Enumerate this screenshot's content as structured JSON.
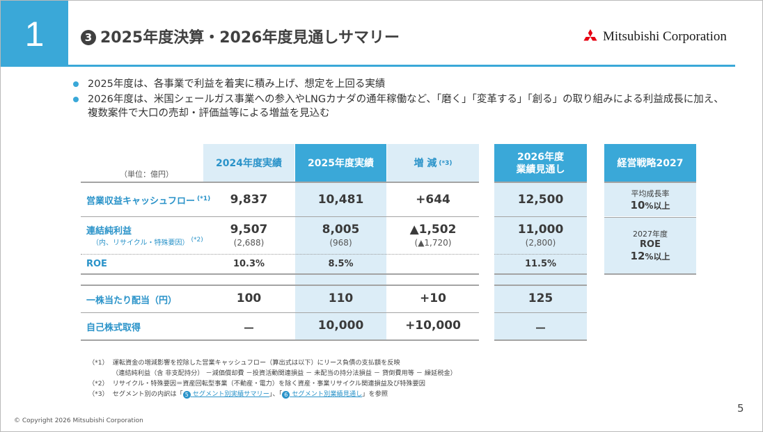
{
  "section_number": "1",
  "title_number": "3",
  "title": "2025年度決算・2026年度見通しサマリー",
  "logo_text": "Mitsubishi Corporation",
  "bullets": [
    "2025年度は、各事業で利益を着実に積み上げ、想定を上回る実績",
    "2026年度は、米国シェールガス事業への参入やLNGカナダの通年稼働など、「磨く」「変革する」「創る」の取り組みによる利益成長に加え、",
    "複数案件で大口の売却・評価益等による増益を見込む"
  ],
  "table": {
    "unit": "（単位：億円）",
    "headers": {
      "fy2024": "2024年度実績",
      "fy2025": "2025年度実績",
      "change": "増 減",
      "change_note": "(*3)",
      "fy2026_line1": "2026年度",
      "fy2026_line2": "業績見通し",
      "strategy": "経営戦略2027"
    },
    "rows": {
      "ocf": {
        "label": "営業収益キャッシュフロー",
        "note": "(*1)",
        "fy2024": "9,837",
        "fy2025": "10,481",
        "change": "+644",
        "fy2026": "12,500"
      },
      "net": {
        "label": "連結純利益",
        "sublabel": "（内、リサイクル・特殊要因）",
        "note": "(*2)",
        "fy2024": "9,507",
        "fy2024_sub": "(2,688)",
        "fy2025": "8,005",
        "fy2025_sub": "(968)",
        "change": "▲1,502",
        "change_sub": "(▲1,720)",
        "fy2026": "11,000",
        "fy2026_sub": "(2,800)"
      },
      "roe": {
        "label": "ROE",
        "fy2024": "10.3%",
        "fy2025": "8.5%",
        "fy2026": "11.5%"
      },
      "dividend": {
        "label": "一株当たり配当（円）",
        "fy2024": "100",
        "fy2025": "110",
        "change": "+10",
        "fy2026": "125"
      },
      "buyback": {
        "label": "自己株式取得",
        "fy2024": "－",
        "fy2025": "10,000",
        "change": "+10,000",
        "fy2026": "－"
      }
    },
    "strategy": {
      "growth_label": "平均成長率",
      "growth_value": "10",
      "growth_suffix": "%以上",
      "roe_label_1": "2027年度",
      "roe_label_2": "ROE",
      "roe_value": "12",
      "roe_suffix": "%以上"
    }
  },
  "footnotes": {
    "n1_mark": "（*1）",
    "n1_text": "運転資金の増減影響を控除した営業キャッシュフロー（算出式は以下）にリース負債の支払額を反映",
    "n1_formula": "（連結純利益（含 非支配持分） －減価償却費 －投資活動関連損益 － 未配当の持分法損益 － 貸倒費用等 － 繰延税金）",
    "n2_mark": "（*2）",
    "n2_text": "リサイクル・特殊要因＝資産回転型事業（不動産・電力）を除く資産・事業リサイクル関連損益及び特殊要因",
    "n3_mark": "（*3）",
    "n3_text_1": "セグメント別の内訳は「",
    "n3_link1_num": "5",
    "n3_link1": "セグメント別実績サマリー",
    "n3_text_2": "」、「",
    "n3_link2_num": "6",
    "n3_link2": "セグメント別業績見通し",
    "n3_text_3": "」を参照"
  },
  "copyright": "© Copyright 2026 Mitsubishi Corporation",
  "page_number": "5",
  "colors": {
    "accent": "#3aa8d8",
    "accent_light": "#dcedf7",
    "label": "#2a93c9",
    "logo_red": "#e60012"
  }
}
